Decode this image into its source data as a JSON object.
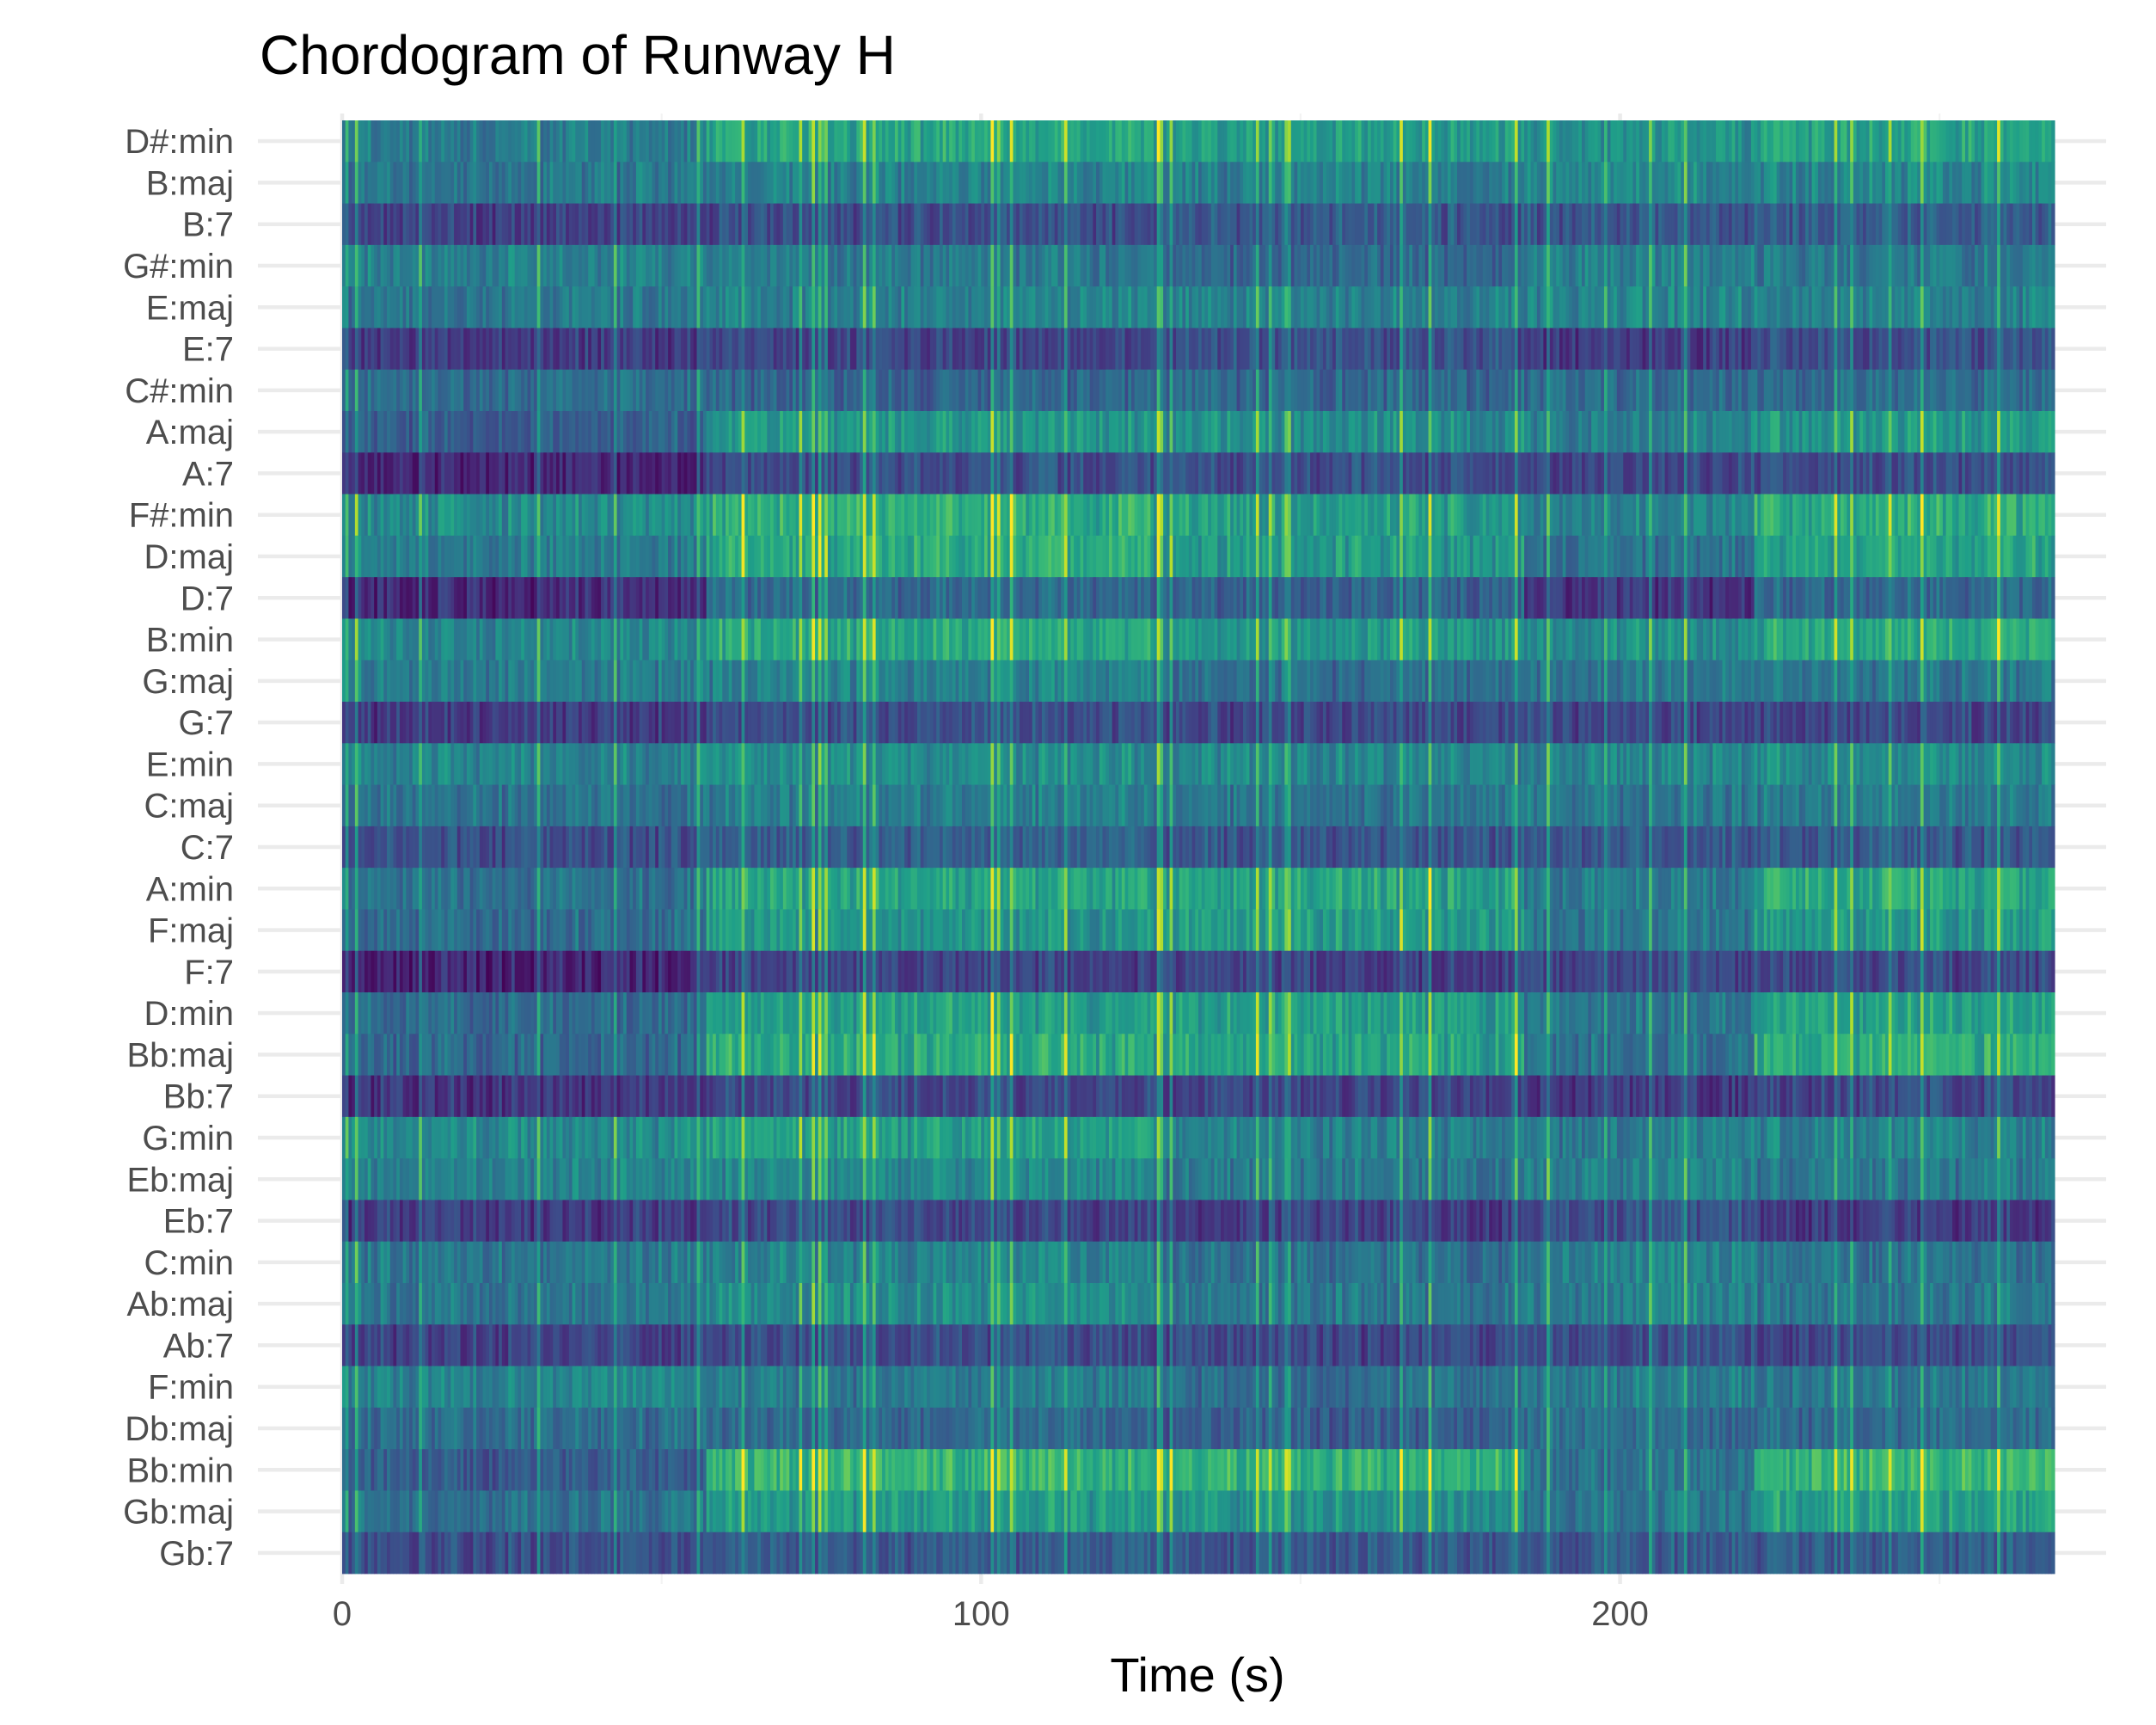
{
  "chart_data": {
    "type": "heatmap",
    "title": "Chordogram of Runway H",
    "subtitle": "",
    "xlabel": "Time (s)",
    "ylabel": "",
    "xlim": [
      0,
      268
    ],
    "x_ticks": [
      0,
      100,
      200
    ],
    "y_categories": [
      "D#:min",
      "B:maj",
      "B:7",
      "G#:min",
      "E:maj",
      "E:7",
      "C#:min",
      "A:maj",
      "A:7",
      "F#:min",
      "D:maj",
      "D:7",
      "B:min",
      "G:maj",
      "G:7",
      "E:min",
      "C:maj",
      "C:7",
      "A:min",
      "F:maj",
      "F:7",
      "D:min",
      "Bb:maj",
      "Bb:7",
      "G:min",
      "Eb:maj",
      "Eb:7",
      "C:min",
      "Ab:maj",
      "Ab:7",
      "F:min",
      "Db:maj",
      "Bb:min",
      "Gb:maj",
      "Gb:7"
    ],
    "colormap": "viridis",
    "color_range": [
      0.0,
      1.0
    ],
    "grid": true,
    "legend": "none",
    "sections_s": [
      0,
      57,
      127,
      185,
      221,
      268
    ],
    "section_profiles": [
      [
        0.42,
        0.4,
        0.2,
        0.44,
        0.4,
        0.18,
        0.36,
        0.3,
        0.12,
        0.48,
        0.42,
        0.14,
        0.46,
        0.42,
        0.18,
        0.45,
        0.38,
        0.24,
        0.38,
        0.36,
        0.12,
        0.35,
        0.34,
        0.16,
        0.48,
        0.44,
        0.18,
        0.4,
        0.4,
        0.2,
        0.46,
        0.36,
        0.3,
        0.38,
        0.24
      ],
      [
        0.58,
        0.44,
        0.24,
        0.4,
        0.44,
        0.2,
        0.32,
        0.52,
        0.24,
        0.62,
        0.6,
        0.34,
        0.6,
        0.44,
        0.24,
        0.48,
        0.42,
        0.3,
        0.58,
        0.52,
        0.2,
        0.56,
        0.6,
        0.22,
        0.56,
        0.46,
        0.22,
        0.44,
        0.48,
        0.24,
        0.4,
        0.34,
        0.64,
        0.54,
        0.28
      ],
      [
        0.56,
        0.44,
        0.28,
        0.34,
        0.44,
        0.26,
        0.34,
        0.5,
        0.24,
        0.56,
        0.54,
        0.32,
        0.54,
        0.36,
        0.22,
        0.46,
        0.4,
        0.28,
        0.58,
        0.56,
        0.2,
        0.56,
        0.58,
        0.22,
        0.44,
        0.4,
        0.2,
        0.38,
        0.4,
        0.22,
        0.36,
        0.3,
        0.64,
        0.52,
        0.28
      ],
      [
        0.52,
        0.48,
        0.28,
        0.46,
        0.46,
        0.18,
        0.36,
        0.44,
        0.22,
        0.46,
        0.38,
        0.16,
        0.5,
        0.4,
        0.22,
        0.46,
        0.4,
        0.28,
        0.42,
        0.4,
        0.22,
        0.4,
        0.38,
        0.18,
        0.42,
        0.44,
        0.26,
        0.44,
        0.44,
        0.26,
        0.42,
        0.36,
        0.4,
        0.4,
        0.3
      ],
      [
        0.58,
        0.46,
        0.3,
        0.4,
        0.44,
        0.24,
        0.36,
        0.54,
        0.24,
        0.62,
        0.58,
        0.34,
        0.6,
        0.4,
        0.22,
        0.48,
        0.42,
        0.28,
        0.6,
        0.54,
        0.22,
        0.58,
        0.62,
        0.22,
        0.44,
        0.4,
        0.18,
        0.38,
        0.4,
        0.22,
        0.4,
        0.34,
        0.66,
        0.56,
        0.3
      ]
    ]
  }
}
